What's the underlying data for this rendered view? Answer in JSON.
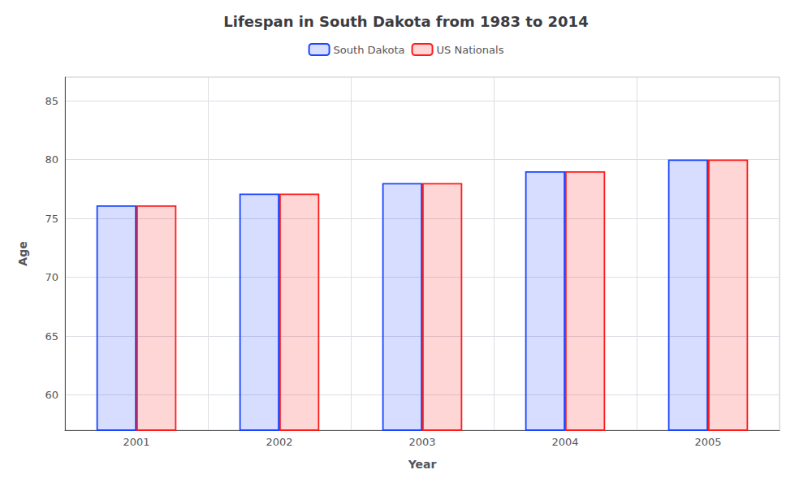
{
  "chart_data": {
    "type": "bar",
    "title": "Lifespan in South Dakota from 1983 to 2014",
    "x_label": "Year",
    "y_label": "Age",
    "categories": [
      "2001",
      "2002",
      "2003",
      "2004",
      "2005"
    ],
    "series": [
      {
        "name": "South Dakota",
        "color": "#1a44ff",
        "values": [
          76.1,
          77.1,
          78.0,
          79.0,
          80.0
        ]
      },
      {
        "name": "US Nationals",
        "color": "#ff1a1a",
        "values": [
          76.1,
          77.1,
          78.0,
          79.0,
          80.0
        ]
      }
    ],
    "ylim": [
      57,
      87
    ],
    "yticks": [
      60,
      65,
      70,
      75,
      80,
      85
    ],
    "grid": true,
    "legend": "top"
  }
}
